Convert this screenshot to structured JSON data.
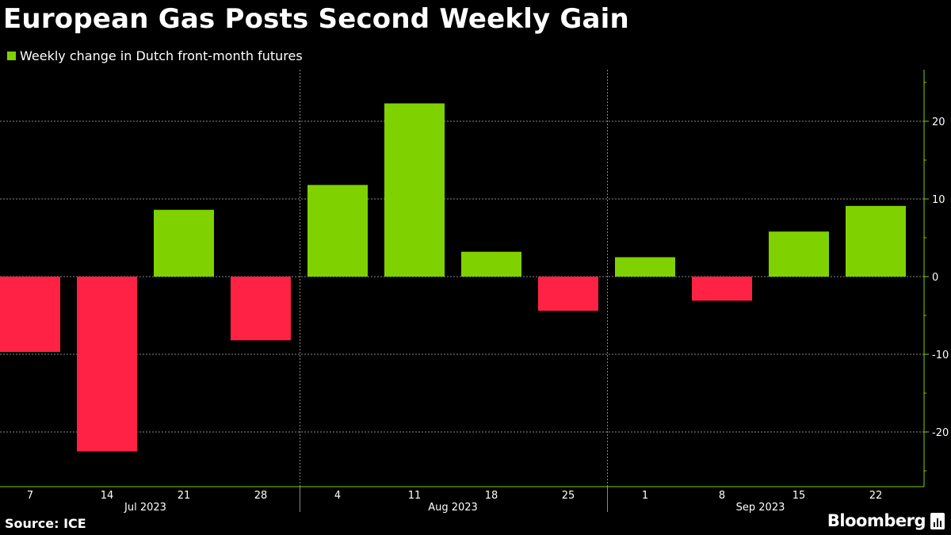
{
  "title": "European Gas Posts Second Weekly Gain",
  "legend": {
    "label": "Weekly change in Dutch front-month futures"
  },
  "source": "Source: ICE",
  "brand": "Bloomberg",
  "colors": {
    "positive": "#7fd100",
    "negative": "#ff2244",
    "axis": "#7fd100",
    "grid": "#888888",
    "background": "#000000"
  },
  "chart_data": {
    "type": "bar",
    "title": "European Gas Posts Second Weekly Gain",
    "categories": [
      "7",
      "14",
      "21",
      "28",
      "4",
      "11",
      "18",
      "25",
      "1",
      "8",
      "15",
      "22"
    ],
    "month_labels": [
      "Jul 2023",
      "Aug 2023",
      "Sep 2023"
    ],
    "series": [
      {
        "name": "Weekly change in Dutch front-month futures",
        "values": [
          -9.7,
          -22.5,
          8.6,
          -8.2,
          11.8,
          22.3,
          3.2,
          -4.4,
          2.5,
          -3.1,
          5.8,
          9.1
        ]
      }
    ],
    "ylim": [
      -25,
      26
    ],
    "yticks": [
      -20,
      -10,
      0,
      10,
      20
    ],
    "grid": true,
    "legend_position": "top-left",
    "yaxis_side": "right"
  }
}
